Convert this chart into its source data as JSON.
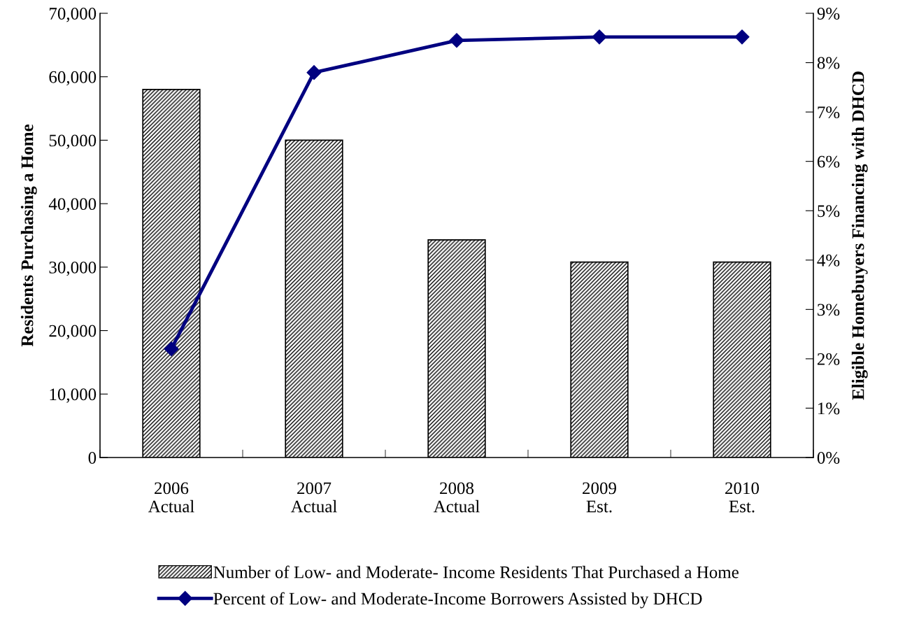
{
  "chart_data": {
    "type": "bar",
    "categories": [
      "2006\nActual",
      "2007\nActual",
      "2008\nActual",
      "2009\nEst.",
      "2010\nEst."
    ],
    "series": [
      {
        "name": "Number of Low- and Moderate- Income Residents That Purchased a Home",
        "color": "#000000",
        "values": [
          58000,
          50000,
          34300,
          30800,
          30800
        ]
      },
      {
        "name": "Percent of Low- and Moderate-Income Borrowers Assisted by DHCD",
        "type": "line",
        "axis": "y2",
        "color": "#000080",
        "marker": "diamond",
        "values": [
          2.2,
          7.8,
          8.45,
          8.52,
          8.52
        ]
      }
    ],
    "ylabel": "Residents Purchasing a Home",
    "y2label": "Eligible Homebuyers Financing with DHCD",
    "ylim": [
      0,
      70000
    ],
    "yticks": [
      {
        "value": 0,
        "label": "0"
      },
      {
        "value": 10000,
        "label": "10,000"
      },
      {
        "value": 20000,
        "label": "20,000"
      },
      {
        "value": 30000,
        "label": "30,000"
      },
      {
        "value": 40000,
        "label": "40,000"
      },
      {
        "value": 50000,
        "label": "50,000"
      },
      {
        "value": 60000,
        "label": "60,000"
      },
      {
        "value": 70000,
        "label": "70,000"
      }
    ],
    "y2lim": [
      0,
      9
    ],
    "y2ticks": [
      {
        "value": 0,
        "label": "0%"
      },
      {
        "value": 1,
        "label": "1%"
      },
      {
        "value": 2,
        "label": "2%"
      },
      {
        "value": 3,
        "label": "3%"
      },
      {
        "value": 4,
        "label": "4%"
      },
      {
        "value": 5,
        "label": "5%"
      },
      {
        "value": 6,
        "label": "6%"
      },
      {
        "value": 7,
        "label": "7%"
      },
      {
        "value": 8,
        "label": "8%"
      },
      {
        "value": 9,
        "label": "9%"
      }
    ],
    "legend": "bottom",
    "grid": false
  }
}
